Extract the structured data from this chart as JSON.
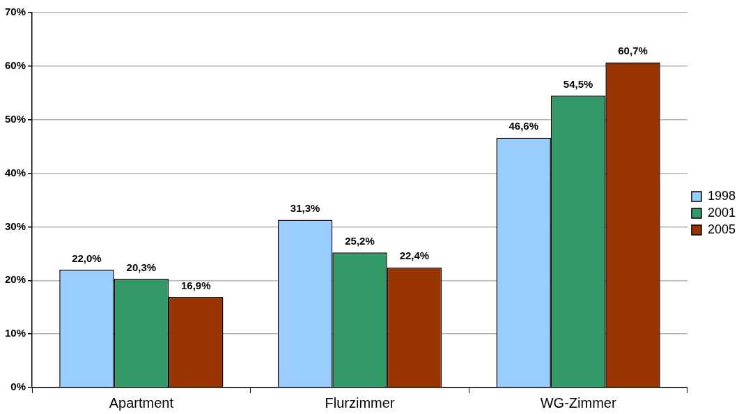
{
  "chart_data": {
    "type": "bar",
    "categories": [
      "Apartment",
      "Flurzimmer",
      "WG-Zimmer"
    ],
    "series": [
      {
        "name": "1998",
        "color": "#99ccff",
        "values": [
          22.0,
          31.3,
          46.6
        ],
        "value_labels": [
          "22,0%",
          "31,3%",
          "46,6%"
        ]
      },
      {
        "name": "2001",
        "color": "#339966",
        "values": [
          20.3,
          25.2,
          54.5
        ],
        "value_labels": [
          "20,3%",
          "25,2%",
          "54,5%"
        ]
      },
      {
        "name": "2005",
        "color": "#993300",
        "values": [
          16.9,
          22.4,
          60.7
        ],
        "value_labels": [
          "16,9%",
          "22,4%",
          "60,7%"
        ]
      }
    ],
    "ylim": [
      0,
      70
    ],
    "yticks": [
      {
        "value": 0,
        "label": "0%"
      },
      {
        "value": 10,
        "label": "10%"
      },
      {
        "value": 20,
        "label": "20%"
      },
      {
        "value": 30,
        "label": "30%"
      },
      {
        "value": 40,
        "label": "40%"
      },
      {
        "value": 50,
        "label": "50%"
      },
      {
        "value": 60,
        "label": "60%"
      },
      {
        "value": 70,
        "label": "70%"
      }
    ],
    "grid": "y",
    "legend": "right"
  }
}
